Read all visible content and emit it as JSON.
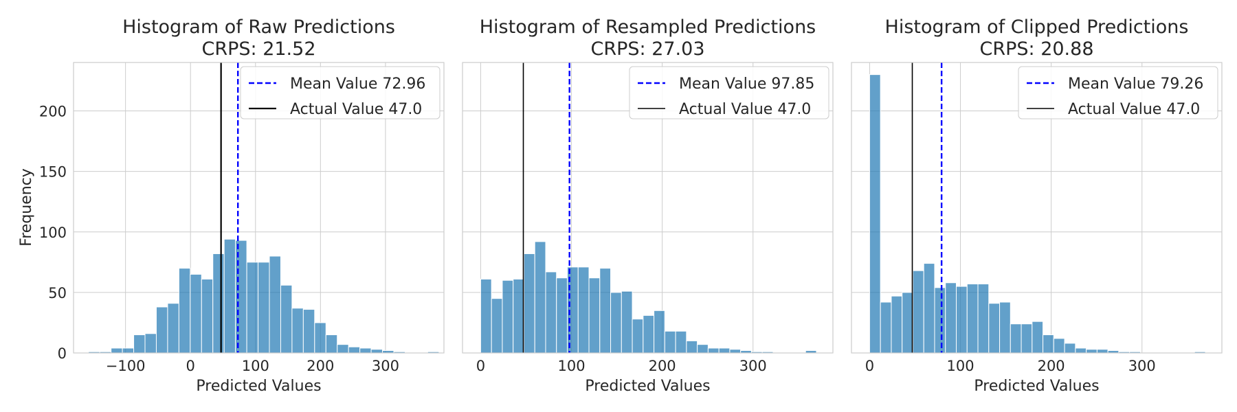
{
  "chart_data": [
    {
      "type": "bar",
      "title": "Histogram of Raw Predictions",
      "subtitle": "CRPS: 21.52",
      "xlabel": "Predicted Values",
      "ylabel": "Frequency",
      "xlim": [
        -180,
        390
      ],
      "ylim": [
        0,
        240
      ],
      "xticks": [
        -100,
        0,
        100,
        200,
        300
      ],
      "xtick_labels": [
        "−100",
        "0",
        "100",
        "200",
        "300"
      ],
      "yticks": [
        0,
        50,
        100,
        150,
        200
      ],
      "ytick_labels": [
        "0",
        "50",
        "100",
        "150",
        "200"
      ],
      "grid": true,
      "legend_position": "top-right",
      "bin_start": -157,
      "bin_width": 17.4,
      "values": [
        1,
        1,
        4,
        4,
        15,
        16,
        38,
        41,
        70,
        65,
        61,
        82,
        94,
        93,
        75,
        75,
        80,
        56,
        37,
        36,
        25,
        15,
        7,
        5,
        4,
        3,
        2,
        1,
        0,
        0,
        1
      ],
      "lines": [
        {
          "name": "Mean Value 72.96",
          "x": 72.96,
          "style": "dashed",
          "color": "#0000ff"
        },
        {
          "name": "Actual Value 47.0",
          "x": 47.0,
          "style": "solid",
          "color": "#000000",
          "width": 2.2
        }
      ]
    },
    {
      "type": "bar",
      "title": "Histogram of Resampled Predictions",
      "subtitle": "CRPS: 27.03",
      "xlabel": "Predicted Values",
      "ylabel": "",
      "xlim": [
        -20,
        388
      ],
      "ylim": [
        0,
        240
      ],
      "xticks": [
        0,
        100,
        200,
        300
      ],
      "xtick_labels": [
        "0",
        "100",
        "200",
        "300"
      ],
      "yticks": [
        0,
        50,
        100,
        150,
        200
      ],
      "ytick_labels": [],
      "grid": true,
      "legend_position": "top-right",
      "bin_start": 0,
      "bin_width": 11.93,
      "values": [
        61,
        45,
        60,
        61,
        82,
        92,
        67,
        62,
        71,
        71,
        62,
        70,
        50,
        51,
        28,
        31,
        35,
        18,
        18,
        10,
        7,
        4,
        4,
        3,
        2,
        1,
        1,
        0,
        0,
        0,
        2
      ],
      "lines": [
        {
          "name": "Mean Value 97.85",
          "x": 97.85,
          "style": "dashed",
          "color": "#0000ff"
        },
        {
          "name": "Actual Value 47.0",
          "x": 47.0,
          "style": "solid",
          "color": "#000000",
          "width": 1.6
        }
      ]
    },
    {
      "type": "bar",
      "title": "Histogram of Clipped Predictions",
      "subtitle": "CRPS: 20.88",
      "xlabel": "Predicted Values",
      "ylabel": "",
      "xlim": [
        -20,
        388
      ],
      "ylim": [
        0,
        240
      ],
      "xticks": [
        0,
        100,
        200,
        300
      ],
      "xtick_labels": [
        "0",
        "100",
        "200",
        "300"
      ],
      "yticks": [
        0,
        50,
        100,
        150,
        200
      ],
      "ytick_labels": [],
      "grid": true,
      "legend_position": "top-right",
      "bin_start": 0,
      "bin_width": 11.93,
      "values": [
        230,
        42,
        47,
        50,
        68,
        74,
        54,
        58,
        55,
        57,
        57,
        41,
        42,
        24,
        24,
        26,
        15,
        12,
        8,
        4,
        3,
        3,
        2,
        1,
        1,
        0,
        0,
        0,
        0,
        0,
        1
      ],
      "lines": [
        {
          "name": "Mean Value 79.26",
          "x": 79.26,
          "style": "dashed",
          "color": "#0000ff"
        },
        {
          "name": "Actual Value 47.0",
          "x": 47.0,
          "style": "solid",
          "color": "#000000",
          "width": 1.6
        }
      ]
    }
  ]
}
